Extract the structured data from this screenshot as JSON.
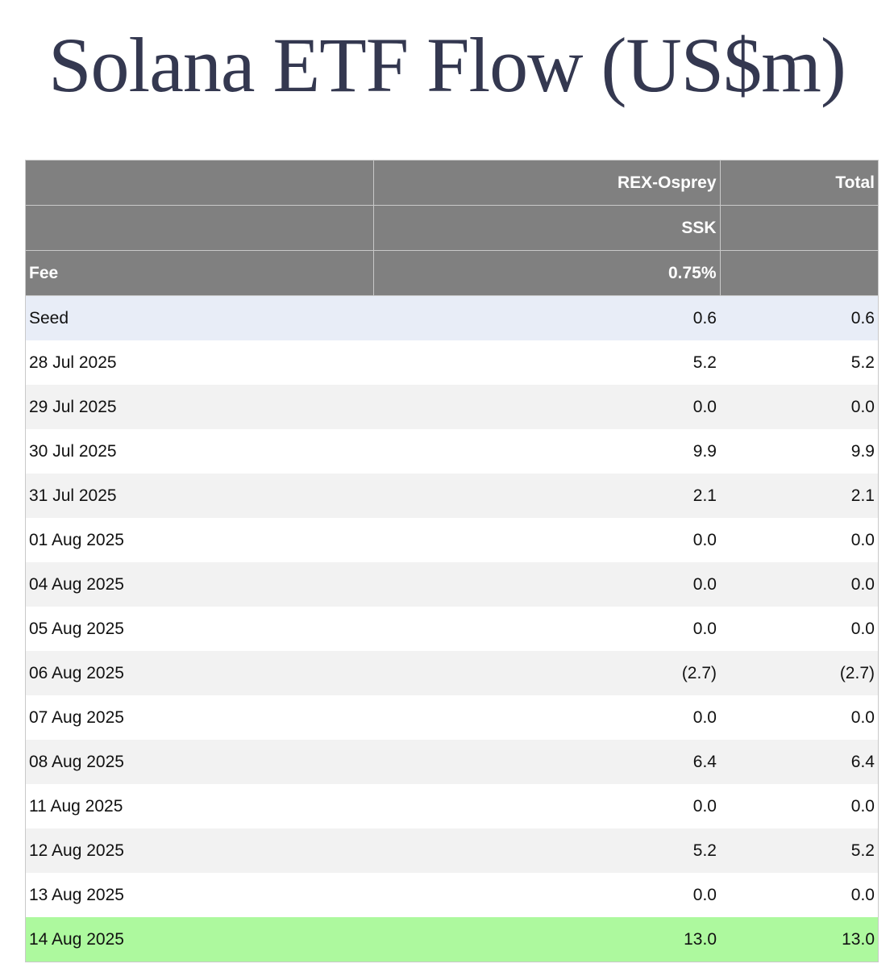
{
  "title": "Solana ETF Flow (US$m)",
  "header_rows": [
    [
      "",
      "REX-Osprey",
      "Total"
    ],
    [
      "",
      "SSK",
      ""
    ],
    [
      "Fee",
      "0.75%",
      ""
    ]
  ],
  "rows": [
    {
      "date": "Seed",
      "ssk": "0.6",
      "total": "0.6"
    },
    {
      "date": "28 Jul 2025",
      "ssk": "5.2",
      "total": "5.2"
    },
    {
      "date": "29 Jul 2025",
      "ssk": "0.0",
      "total": "0.0"
    },
    {
      "date": "30 Jul 2025",
      "ssk": "9.9",
      "total": "9.9"
    },
    {
      "date": "31 Jul 2025",
      "ssk": "2.1",
      "total": "2.1"
    },
    {
      "date": "01 Aug 2025",
      "ssk": "0.0",
      "total": "0.0"
    },
    {
      "date": "04 Aug 2025",
      "ssk": "0.0",
      "total": "0.0"
    },
    {
      "date": "05 Aug 2025",
      "ssk": "0.0",
      "total": "0.0"
    },
    {
      "date": "06 Aug 2025",
      "ssk": "(2.7)",
      "total": "(2.7)"
    },
    {
      "date": "07 Aug 2025",
      "ssk": "0.0",
      "total": "0.0"
    },
    {
      "date": "08 Aug 2025",
      "ssk": "6.4",
      "total": "6.4"
    },
    {
      "date": "11 Aug 2025",
      "ssk": "0.0",
      "total": "0.0"
    },
    {
      "date": "12 Aug 2025",
      "ssk": "5.2",
      "total": "5.2"
    },
    {
      "date": "13 Aug 2025",
      "ssk": "0.0",
      "total": "0.0"
    },
    {
      "date": "14 Aug 2025",
      "ssk": "13.0",
      "total": "13.0"
    }
  ],
  "colors": {
    "header_bg": "#808080",
    "seed_row_bg": "#e8edf7",
    "stripe_bg": "#f2f2f2",
    "latest_row_bg": "#adf99e",
    "negative_text": "#e03a2e",
    "title_text": "#343850"
  }
}
